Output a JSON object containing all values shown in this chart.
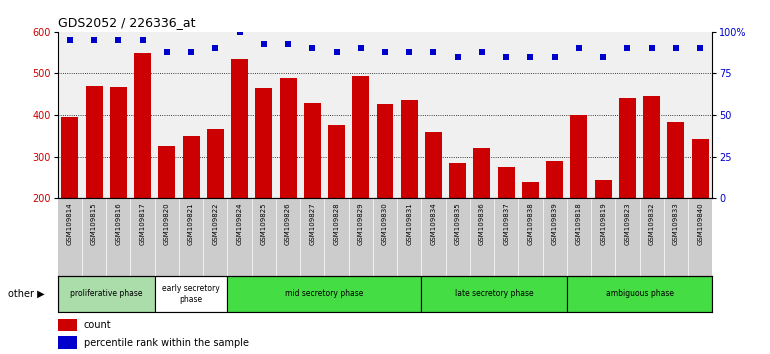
{
  "title": "GDS2052 / 226336_at",
  "samples": [
    "GSM109814",
    "GSM109815",
    "GSM109816",
    "GSM109817",
    "GSM109820",
    "GSM109821",
    "GSM109822",
    "GSM109824",
    "GSM109825",
    "GSM109826",
    "GSM109827",
    "GSM109828",
    "GSM109829",
    "GSM109830",
    "GSM109831",
    "GSM109834",
    "GSM109835",
    "GSM109836",
    "GSM109837",
    "GSM109838",
    "GSM109839",
    "GSM109818",
    "GSM109819",
    "GSM109823",
    "GSM109832",
    "GSM109833",
    "GSM109840"
  ],
  "counts": [
    395,
    470,
    467,
    548,
    325,
    350,
    367,
    535,
    465,
    488,
    430,
    375,
    495,
    427,
    435,
    360,
    285,
    320,
    275,
    240,
    290,
    400,
    245,
    440,
    447,
    383,
    342
  ],
  "percentile_ranks": [
    95,
    95,
    95,
    95,
    88,
    88,
    90,
    100,
    93,
    93,
    90,
    88,
    90,
    88,
    88,
    88,
    85,
    88,
    85,
    85,
    85,
    90,
    85,
    90,
    90,
    90,
    90
  ],
  "phases": [
    {
      "name": "proliferative phase",
      "start": 0,
      "end": 4,
      "color": "#aaddaa"
    },
    {
      "name": "early secretory\nphase",
      "start": 4,
      "end": 7,
      "color": "#ffffff"
    },
    {
      "name": "mid secretory phase",
      "start": 7,
      "end": 15,
      "color": "#44dd44"
    },
    {
      "name": "late secretory phase",
      "start": 15,
      "end": 21,
      "color": "#44dd44"
    },
    {
      "name": "ambiguous phase",
      "start": 21,
      "end": 27,
      "color": "#44dd44"
    }
  ],
  "bar_color": "#cc0000",
  "dot_color": "#0000cc",
  "ylim_left": [
    200,
    600
  ],
  "ylim_right": [
    0,
    100
  ],
  "yticks_left": [
    200,
    300,
    400,
    500,
    600
  ],
  "yticks_right": [
    0,
    25,
    50,
    75,
    100
  ],
  "grid_lines": [
    300,
    400,
    500
  ],
  "tick_bg_color": "#cccccc",
  "plot_bg_color": "#f0f0f0"
}
